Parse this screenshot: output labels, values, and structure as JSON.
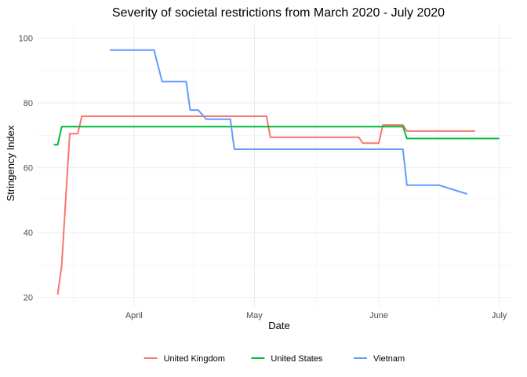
{
  "chart_data": {
    "type": "line",
    "title": "Severity of societal restrictions from March 2020 - July 2020",
    "xlabel": "Date",
    "ylabel": "Stringency Index",
    "xlim": [
      "2020-03-08",
      "2020-07-04"
    ],
    "ylim": [
      17,
      104
    ],
    "x_ticks": [
      {
        "date": "2020-04-01",
        "label": "April"
      },
      {
        "date": "2020-05-01",
        "label": "May"
      },
      {
        "date": "2020-06-01",
        "label": "June"
      },
      {
        "date": "2020-07-01",
        "label": "July"
      }
    ],
    "y_ticks": [
      20,
      40,
      60,
      80,
      100
    ],
    "grid": true,
    "legend": "bottom",
    "series": [
      {
        "name": "United Kingdom",
        "color": "#F8766D",
        "points": [
          [
            "2020-03-13",
            20.8
          ],
          [
            "2020-03-14",
            30.0
          ],
          [
            "2020-03-16",
            70.5
          ],
          [
            "2020-03-18",
            70.5
          ],
          [
            "2020-03-19",
            75.9
          ],
          [
            "2020-05-04",
            75.9
          ],
          [
            "2020-05-05",
            69.4
          ],
          [
            "2020-05-27",
            69.4
          ],
          [
            "2020-05-28",
            67.6
          ],
          [
            "2020-06-01",
            67.6
          ],
          [
            "2020-06-02",
            73.2
          ],
          [
            "2020-06-07",
            73.2
          ],
          [
            "2020-06-08",
            71.3
          ],
          [
            "2020-06-25",
            71.3
          ]
        ]
      },
      {
        "name": "United States",
        "color": "#00BA38",
        "points": [
          [
            "2020-03-12",
            67.1
          ],
          [
            "2020-03-13",
            67.1
          ],
          [
            "2020-03-14",
            72.7
          ],
          [
            "2020-06-07",
            72.7
          ],
          [
            "2020-06-08",
            69.0
          ],
          [
            "2020-07-01",
            69.0
          ]
        ]
      },
      {
        "name": "Vietnam",
        "color": "#619CFF",
        "points": [
          [
            "2020-03-26",
            96.3
          ],
          [
            "2020-04-06",
            96.3
          ],
          [
            "2020-04-08",
            86.6
          ],
          [
            "2020-04-14",
            86.6
          ],
          [
            "2020-04-15",
            77.8
          ],
          [
            "2020-04-17",
            77.8
          ],
          [
            "2020-04-19",
            75.0
          ],
          [
            "2020-04-25",
            75.0
          ],
          [
            "2020-04-26",
            65.7
          ],
          [
            "2020-06-07",
            65.7
          ],
          [
            "2020-06-08",
            54.6
          ],
          [
            "2020-06-16",
            54.6
          ],
          [
            "2020-06-23",
            51.9
          ]
        ]
      }
    ]
  }
}
